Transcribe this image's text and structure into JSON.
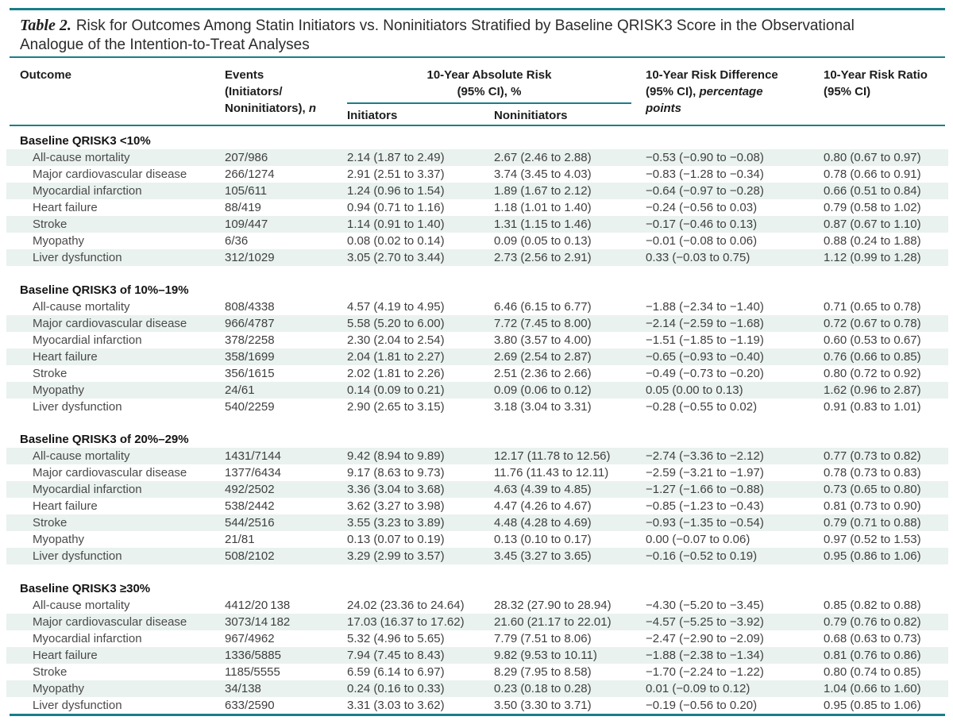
{
  "title": {
    "label": "Table 2.",
    "line1": "Risk for Outcomes Among Statin Initiators vs. Noninitiators Stratified by Baseline QRISK3 Score in the Observational",
    "line2": "Analogue of the Intention-to-Treat Analyses"
  },
  "colors": {
    "rule_teal": "#1b7e89",
    "row_stripe": "#e9f2ee",
    "text": "#3f3f3f"
  },
  "columns": {
    "outcome": "Outcome",
    "events": {
      "line1": "Events",
      "line2": "(Initiators/",
      "line3": "Noninitiators), ",
      "n": "n"
    },
    "absolute_risk": {
      "line1": "10-Year Absolute Risk",
      "line2": "(95% CI), %",
      "sub_initiators": "Initiators",
      "sub_noninitiators": "Noninitiators"
    },
    "risk_difference": {
      "line1": "10-Year Risk Difference",
      "line2_roman": "(95% CI), ",
      "line2_italic": "percentage",
      "line3_italic": "points"
    },
    "risk_ratio": {
      "line1": "10-Year Risk Ratio",
      "line2": "(95% CI)"
    }
  },
  "table": {
    "sections": [
      {
        "header": "Baseline QRISK3 <10%",
        "rows": [
          {
            "outcome": "All-cause mortality",
            "events": "207/986",
            "initiators": "2.14 (1.87 to 2.49)",
            "noninitiators": "2.67 (2.46 to 2.88)",
            "difference": "−0.53 (−0.90 to −0.08)",
            "ratio": "0.80 (0.67 to 0.97)"
          },
          {
            "outcome": "Major cardiovascular disease",
            "events": "266/1274",
            "initiators": "2.91 (2.51 to 3.37)",
            "noninitiators": "3.74 (3.45 to 4.03)",
            "difference": "−0.83 (−1.28 to −0.34)",
            "ratio": "0.78 (0.66 to 0.91)"
          },
          {
            "outcome": "Myocardial infarction",
            "events": "105/611",
            "initiators": "1.24 (0.96 to 1.54)",
            "noninitiators": "1.89 (1.67 to 2.12)",
            "difference": "−0.64 (−0.97 to −0.28)",
            "ratio": "0.66 (0.51 to 0.84)"
          },
          {
            "outcome": "Heart failure",
            "events": "88/419",
            "initiators": "0.94 (0.71 to 1.16)",
            "noninitiators": "1.18 (1.01 to 1.40)",
            "difference": "−0.24 (−0.56 to 0.03)",
            "ratio": "0.79 (0.58 to 1.02)"
          },
          {
            "outcome": "Stroke",
            "events": "109/447",
            "initiators": "1.14 (0.91 to 1.40)",
            "noninitiators": "1.31 (1.15 to 1.46)",
            "difference": "−0.17 (−0.46 to 0.13)",
            "ratio": "0.87 (0.67 to 1.10)"
          },
          {
            "outcome": "Myopathy",
            "events": "6/36",
            "initiators": "0.08 (0.02 to 0.14)",
            "noninitiators": "0.09 (0.05 to 0.13)",
            "difference": "−0.01 (−0.08 to 0.06)",
            "ratio": "0.88 (0.24 to 1.88)"
          },
          {
            "outcome": "Liver dysfunction",
            "events": "312/1029",
            "initiators": "3.05 (2.70 to 3.44)",
            "noninitiators": "2.73 (2.56 to 2.91)",
            "difference": "0.33 (−0.03 to 0.75)",
            "ratio": "1.12 (0.99 to 1.28)"
          }
        ]
      },
      {
        "header": "Baseline QRISK3 of 10%–19%",
        "rows": [
          {
            "outcome": "All-cause mortality",
            "events": "808/4338",
            "initiators": "4.57 (4.19 to 4.95)",
            "noninitiators": "6.46 (6.15 to 6.77)",
            "difference": "−1.88 (−2.34 to −1.40)",
            "ratio": "0.71 (0.65 to 0.78)"
          },
          {
            "outcome": "Major cardiovascular disease",
            "events": "966/4787",
            "initiators": "5.58 (5.20 to 6.00)",
            "noninitiators": "7.72 (7.45 to 8.00)",
            "difference": "−2.14 (−2.59 to −1.68)",
            "ratio": "0.72 (0.67 to 0.78)"
          },
          {
            "outcome": "Myocardial infarction",
            "events": "378/2258",
            "initiators": "2.30 (2.04 to 2.54)",
            "noninitiators": "3.80 (3.57 to 4.00)",
            "difference": "−1.51 (−1.85 to −1.19)",
            "ratio": "0.60 (0.53 to 0.67)"
          },
          {
            "outcome": "Heart failure",
            "events": "358/1699",
            "initiators": "2.04 (1.81 to 2.27)",
            "noninitiators": "2.69 (2.54 to 2.87)",
            "difference": "−0.65 (−0.93 to −0.40)",
            "ratio": "0.76 (0.66 to 0.85)"
          },
          {
            "outcome": "Stroke",
            "events": "356/1615",
            "initiators": "2.02 (1.81 to 2.26)",
            "noninitiators": "2.51 (2.36 to 2.66)",
            "difference": "−0.49 (−0.73 to −0.20)",
            "ratio": "0.80 (0.72 to 0.92)"
          },
          {
            "outcome": "Myopathy",
            "events": "24/61",
            "initiators": "0.14 (0.09 to 0.21)",
            "noninitiators": "0.09 (0.06 to 0.12)",
            "difference": "0.05 (0.00 to 0.13)",
            "ratio": "1.62 (0.96 to 2.87)"
          },
          {
            "outcome": "Liver dysfunction",
            "events": "540/2259",
            "initiators": "2.90 (2.65 to 3.15)",
            "noninitiators": "3.18 (3.04 to 3.31)",
            "difference": "−0.28 (−0.55 to 0.02)",
            "ratio": "0.91 (0.83 to 1.01)"
          }
        ]
      },
      {
        "header": "Baseline QRISK3 of 20%–29%",
        "rows": [
          {
            "outcome": "All-cause mortality",
            "events": "1431/7144",
            "initiators": "9.42 (8.94 to 9.89)",
            "noninitiators": "12.17 (11.78 to 12.56)",
            "difference": "−2.74 (−3.36 to −2.12)",
            "ratio": "0.77 (0.73 to 0.82)"
          },
          {
            "outcome": "Major cardiovascular disease",
            "events": "1377/6434",
            "initiators": "9.17 (8.63 to 9.73)",
            "noninitiators": "11.76 (11.43 to 12.11)",
            "difference": "−2.59 (−3.21 to −1.97)",
            "ratio": "0.78 (0.73 to 0.83)"
          },
          {
            "outcome": "Myocardial infarction",
            "events": "492/2502",
            "initiators": "3.36 (3.04 to 3.68)",
            "noninitiators": "4.63 (4.39 to 4.85)",
            "difference": "−1.27 (−1.66 to −0.88)",
            "ratio": "0.73 (0.65 to 0.80)"
          },
          {
            "outcome": "Heart failure",
            "events": "538/2442",
            "initiators": "3.62 (3.27 to 3.98)",
            "noninitiators": "4.47 (4.26 to 4.67)",
            "difference": "−0.85 (−1.23 to −0.43)",
            "ratio": "0.81 (0.73 to 0.90)"
          },
          {
            "outcome": "Stroke",
            "events": "544/2516",
            "initiators": "3.55 (3.23 to 3.89)",
            "noninitiators": "4.48 (4.28 to 4.69)",
            "difference": "−0.93 (−1.35 to −0.54)",
            "ratio": "0.79 (0.71 to 0.88)"
          },
          {
            "outcome": "Myopathy",
            "events": "21/81",
            "initiators": "0.13 (0.07 to 0.19)",
            "noninitiators": "0.13 (0.10 to 0.17)",
            "difference": "0.00 (−0.07 to 0.06)",
            "ratio": "0.97 (0.52 to 1.53)"
          },
          {
            "outcome": "Liver dysfunction",
            "events": "508/2102",
            "initiators": "3.29 (2.99 to 3.57)",
            "noninitiators": "3.45 (3.27 to 3.65)",
            "difference": "−0.16 (−0.52 to 0.19)",
            "ratio": "0.95 (0.86 to 1.06)"
          }
        ]
      },
      {
        "header": "Baseline QRISK3 ≥30%",
        "rows": [
          {
            "outcome": "All-cause mortality",
            "events": "4412/20 138",
            "initiators": "24.02 (23.36 to 24.64)",
            "noninitiators": "28.32 (27.90 to 28.94)",
            "difference": "−4.30 (−5.20 to −3.45)",
            "ratio": "0.85 (0.82 to 0.88)"
          },
          {
            "outcome": "Major cardiovascular disease",
            "events": "3073/14 182",
            "initiators": "17.03 (16.37 to 17.62)",
            "noninitiators": "21.60 (21.17 to 22.01)",
            "difference": "−4.57 (−5.25 to −3.92)",
            "ratio": "0.79 (0.76 to 0.82)"
          },
          {
            "outcome": "Myocardial infarction",
            "events": "967/4962",
            "initiators": "5.32 (4.96 to 5.65)",
            "noninitiators": "7.79 (7.51 to 8.06)",
            "difference": "−2.47 (−2.90 to −2.09)",
            "ratio": "0.68 (0.63 to 0.73)"
          },
          {
            "outcome": "Heart failure",
            "events": "1336/5885",
            "initiators": "7.94 (7.45 to 8.43)",
            "noninitiators": "9.82 (9.53 to 10.11)",
            "difference": "−1.88 (−2.38 to −1.34)",
            "ratio": "0.81 (0.76 to 0.86)"
          },
          {
            "outcome": "Stroke",
            "events": "1185/5555",
            "initiators": "6.59 (6.14 to 6.97)",
            "noninitiators": "8.29 (7.95 to 8.58)",
            "difference": "−1.70 (−2.24 to −1.22)",
            "ratio": "0.80 (0.74 to 0.85)"
          },
          {
            "outcome": "Myopathy",
            "events": "34/138",
            "initiators": "0.24 (0.16 to 0.33)",
            "noninitiators": "0.23 (0.18 to 0.28)",
            "difference": "0.01 (−0.09 to 0.12)",
            "ratio": "1.04 (0.66 to 1.60)"
          },
          {
            "outcome": "Liver dysfunction",
            "events": "633/2590",
            "initiators": "3.31 (3.03 to 3.62)",
            "noninitiators": "3.50 (3.30 to 3.71)",
            "difference": "−0.19 (−0.56 to 0.20)",
            "ratio": "0.95 (0.85 to 1.06)"
          }
        ]
      }
    ]
  }
}
